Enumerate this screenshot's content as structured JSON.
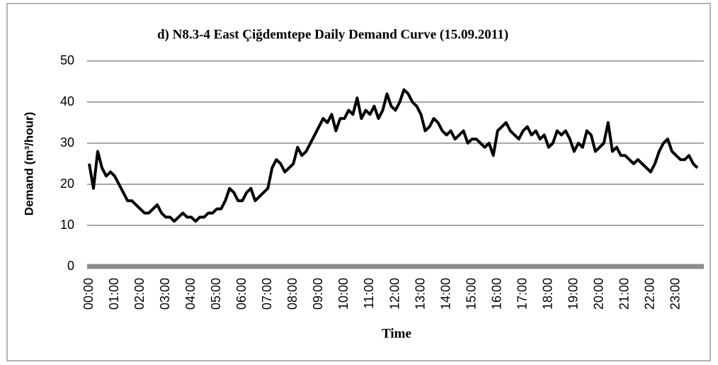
{
  "chart_data": {
    "type": "line",
    "title": "d) N8.3-4 East Çiğdemtepe Daily Demand Curve (15.09.2011)",
    "xlabel": "Time",
    "ylabel": "Demand (m³/hour)",
    "categories": [
      "00:00",
      null,
      null,
      null,
      null,
      null,
      "01:00",
      null,
      null,
      null,
      null,
      null,
      "02:00",
      null,
      null,
      null,
      null,
      null,
      "03:00",
      null,
      null,
      null,
      null,
      null,
      "04:00",
      null,
      null,
      null,
      null,
      null,
      "05:00",
      null,
      null,
      null,
      null,
      null,
      "06:00",
      null,
      null,
      null,
      null,
      null,
      "07:00",
      null,
      null,
      null,
      null,
      null,
      "08:00",
      null,
      null,
      null,
      null,
      null,
      "09:00",
      null,
      null,
      null,
      null,
      null,
      "10:00",
      null,
      null,
      null,
      null,
      null,
      "11:00",
      null,
      null,
      null,
      null,
      null,
      "12:00",
      null,
      null,
      null,
      null,
      null,
      "13:00",
      null,
      null,
      null,
      null,
      null,
      "14:00",
      null,
      null,
      null,
      null,
      null,
      "15:00",
      null,
      null,
      null,
      null,
      null,
      "16:00",
      null,
      null,
      null,
      null,
      null,
      "17:00",
      null,
      null,
      null,
      null,
      null,
      "18:00",
      null,
      null,
      null,
      null,
      null,
      "19:00",
      null,
      null,
      null,
      null,
      null,
      "20:00",
      null,
      null,
      null,
      null,
      null,
      "21:00",
      null,
      null,
      null,
      null,
      null,
      "22:00",
      null,
      null,
      null,
      null,
      null,
      "23:00",
      null,
      null,
      null,
      null,
      null
    ],
    "values": [
      25,
      19,
      28,
      24,
      22,
      23,
      22,
      20,
      18,
      16,
      16,
      15,
      14,
      13,
      13,
      14,
      15,
      13,
      12,
      12,
      11,
      12,
      13,
      12,
      12,
      11,
      12,
      12,
      13,
      13,
      14,
      14,
      16,
      19,
      18,
      16,
      16,
      18,
      19,
      16,
      17,
      18,
      19,
      24,
      26,
      25,
      23,
      24,
      25,
      29,
      27,
      28,
      30,
      32,
      34,
      36,
      35,
      37,
      33,
      36,
      36,
      38,
      37,
      41,
      36,
      38,
      37,
      39,
      36,
      38,
      42,
      39,
      38,
      40,
      43,
      42,
      40,
      39,
      37,
      33,
      34,
      36,
      35,
      33,
      32,
      33,
      31,
      32,
      33,
      30,
      31,
      31,
      30,
      29,
      30,
      27,
      33,
      34,
      35,
      33,
      32,
      31,
      33,
      34,
      32,
      33,
      31,
      32,
      29,
      30,
      33,
      32,
      33,
      31,
      28,
      30,
      29,
      33,
      32,
      28,
      29,
      30,
      35,
      28,
      29,
      27,
      27,
      26,
      25,
      26,
      25,
      24,
      23,
      25,
      28,
      30,
      31,
      28,
      27,
      26,
      26,
      27,
      25,
      24
    ],
    "color": "#000000",
    "ylim": [
      0,
      50
    ],
    "yticks": [
      0,
      10,
      20,
      30,
      40,
      50
    ],
    "grid": true
  }
}
